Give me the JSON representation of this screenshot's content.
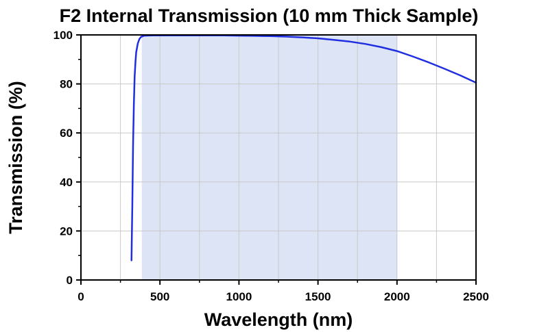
{
  "chart_data": {
    "type": "line",
    "title": "F2 Internal Transmission (10 mm Thick Sample)",
    "xlabel": "Wavelength (nm)",
    "ylabel": "Transmission (%)",
    "xlim": [
      0,
      2500
    ],
    "ylim": [
      0,
      100
    ],
    "xticks": [
      "0",
      "500",
      "1000",
      "1500",
      "2000",
      "2500"
    ],
    "yticks": [
      "0",
      "20",
      "40",
      "60",
      "80",
      "100"
    ],
    "grid": true,
    "highlight_range": [
      385,
      2000
    ],
    "colors": {
      "line": "#1f2ee0",
      "highlight": "#dce4f6",
      "grid": "#c8c8c8"
    },
    "series": [
      {
        "x": [
          320,
          325,
          330,
          335,
          340,
          345,
          350,
          360,
          370,
          380,
          400,
          450,
          500,
          600,
          700,
          800,
          900,
          1000,
          1100,
          1200,
          1300,
          1400,
          1500,
          1600,
          1700,
          1800,
          1900,
          2000,
          2100,
          2200,
          2300,
          2400,
          2500
        ],
        "y": [
          8,
          30,
          55,
          72,
          83,
          89,
          93,
          96.5,
          98.3,
          99.2,
          99.7,
          99.8,
          99.8,
          99.8,
          99.8,
          99.8,
          99.8,
          99.7,
          99.6,
          99.5,
          99.3,
          99.0,
          98.6,
          98.0,
          97.3,
          96.3,
          95.0,
          93.4,
          91.2,
          88.8,
          86.2,
          83.5,
          80.5
        ]
      }
    ]
  }
}
